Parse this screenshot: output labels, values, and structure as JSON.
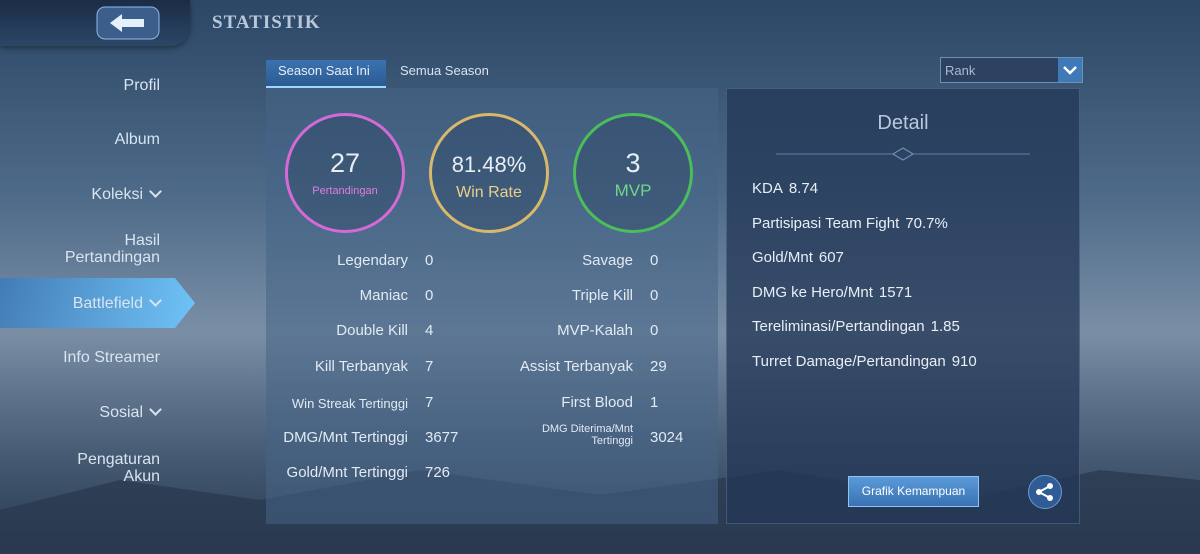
{
  "header": {
    "title": "STATISTIK"
  },
  "sidebar": {
    "items": [
      {
        "label": "Profil"
      },
      {
        "label": "Album"
      },
      {
        "label": "Koleksi"
      },
      {
        "label": "Hasil Pertandingan"
      },
      {
        "label": "Battlefield"
      },
      {
        "label": "Info Streamer"
      },
      {
        "label": "Sosial"
      },
      {
        "label": "Pengaturan Akun"
      }
    ]
  },
  "tabs": [
    "Season Saat Ini",
    "Semua Season"
  ],
  "dropdown": {
    "selected": "Rank"
  },
  "summary": [
    {
      "value": "27",
      "label": "Pertandingan"
    },
    {
      "value": "81.48%",
      "label": "Win Rate"
    },
    {
      "value": "3",
      "label": "MVP"
    }
  ],
  "stats": {
    "left": [
      {
        "label": "Legendary",
        "value": "0"
      },
      {
        "label": "Maniac",
        "value": "0"
      },
      {
        "label": "Double Kill",
        "value": "4"
      },
      {
        "label": "Kill Terbanyak",
        "value": "7"
      },
      {
        "label": "Win Streak Tertinggi",
        "value": "7"
      },
      {
        "label": "DMG/Mnt Tertinggi",
        "value": "3677"
      },
      {
        "label": "Gold/Mnt Tertinggi",
        "value": "726"
      }
    ],
    "right": [
      {
        "label": "Savage",
        "value": "0"
      },
      {
        "label": "Triple Kill",
        "value": "0"
      },
      {
        "label": "MVP-Kalah",
        "value": "0"
      },
      {
        "label": "Assist Terbanyak",
        "value": "29"
      },
      {
        "label": "First Blood",
        "value": "1"
      },
      {
        "label": "DMG Diterima/Mnt Tertinggi",
        "value": "3024"
      }
    ]
  },
  "detail": {
    "title": "Detail",
    "items": [
      {
        "label": "KDA",
        "value": "8.74"
      },
      {
        "label": "Partisipasi Team Fight",
        "value": "70.7%"
      },
      {
        "label": "Gold/Mnt",
        "value": "607"
      },
      {
        "label": "DMG ke Hero/Mnt",
        "value": "1571"
      },
      {
        "label": "Tereliminasi/Pertandingan",
        "value": "1.85"
      },
      {
        "label": "Turret Damage/Pertandingan",
        "value": "910"
      }
    ],
    "button": "Grafik Kemampuan"
  }
}
